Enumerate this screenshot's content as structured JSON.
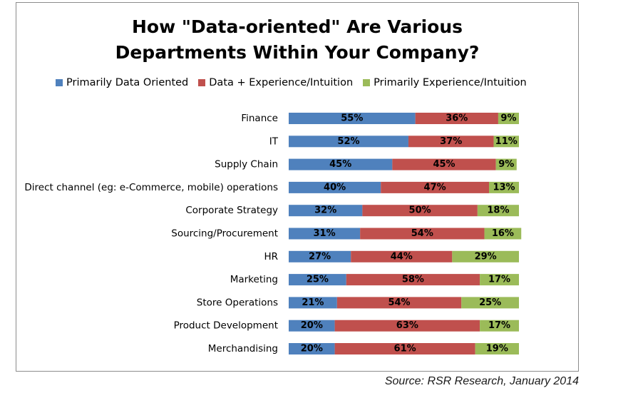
{
  "chart_data": {
    "type": "bar",
    "orientation": "horizontal",
    "stacked": true,
    "title": "How \"Data-oriented\" Are Various\nDepartments Within Your Company?",
    "xlabel": "",
    "ylabel": "",
    "xlim": [
      0,
      100
    ],
    "grid": false,
    "legend_position": "top",
    "categories": [
      "Finance",
      "IT",
      "Supply Chain",
      "Direct channel (eg: e-Commerce, mobile) operations",
      "Corporate Strategy",
      "Sourcing/Procurement",
      "HR",
      "Marketing",
      "Store Operations",
      "Product Development",
      "Merchandising"
    ],
    "series": [
      {
        "name": "Primarily Data Oriented",
        "color": "#4f81bd",
        "values": [
          55,
          52,
          45,
          40,
          32,
          31,
          27,
          25,
          21,
          20,
          20
        ],
        "labels": [
          "55%",
          "52%",
          "45%",
          "40%",
          "32%",
          "31%",
          "27%",
          "25%",
          "21%",
          "20%",
          "20%"
        ]
      },
      {
        "name": "Data + Experience/Intuition",
        "color": "#c0504d",
        "values": [
          36,
          37,
          45,
          47,
          50,
          54,
          44,
          58,
          54,
          63,
          61
        ],
        "labels": [
          "36%",
          "37%",
          "45%",
          "47%",
          "50%",
          "54%",
          "44%",
          "58%",
          "54%",
          "63%",
          "61%"
        ]
      },
      {
        "name": "Primarily Experience/Intuition",
        "color": "#9bbb59",
        "values": [
          9,
          11,
          9,
          13,
          18,
          16,
          29,
          17,
          25,
          17,
          19
        ],
        "labels": [
          "9%",
          "11%",
          "9%",
          "13%",
          "18%",
          "16%",
          "29%",
          "17%",
          "25%",
          "17%",
          "19%"
        ]
      }
    ]
  },
  "source": "Source: RSR Research, January 2014"
}
